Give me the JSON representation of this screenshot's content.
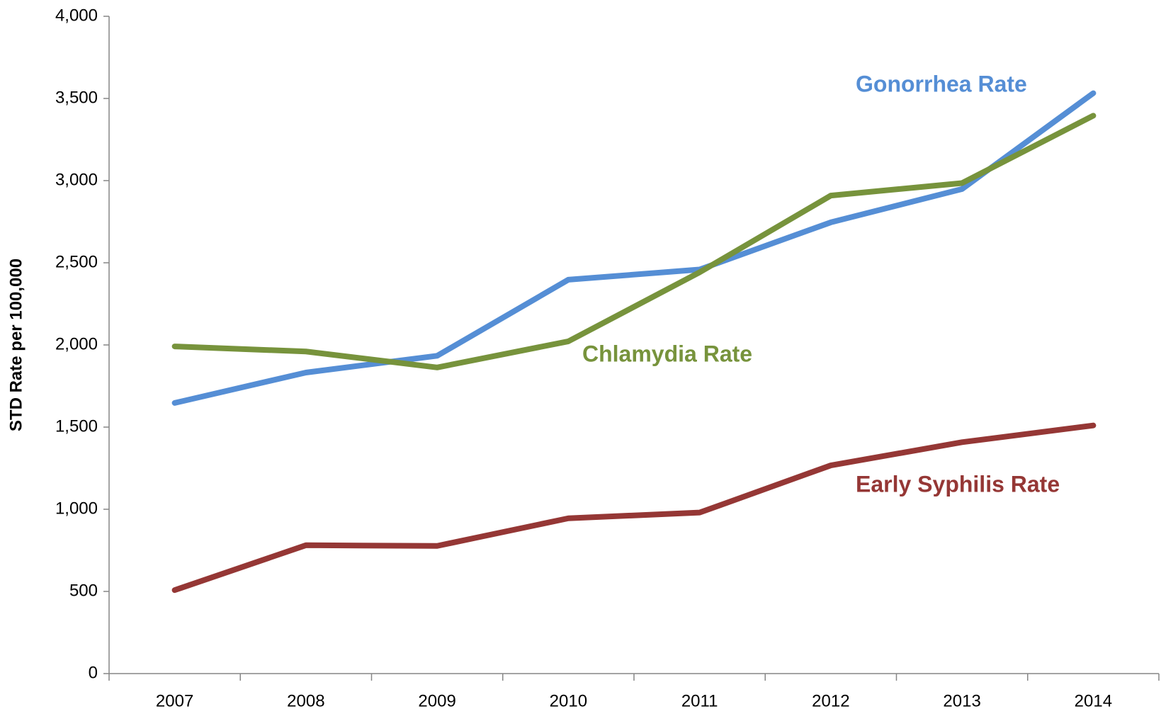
{
  "chart_data": {
    "type": "line",
    "y_label": "STD Rate per 100,000",
    "categories": [
      "2007",
      "2008",
      "2009",
      "2010",
      "2011",
      "2012",
      "2013",
      "2014"
    ],
    "series": [
      {
        "name": "Gonorrhea Rate",
        "color": "#558ed5",
        "values": [
          1647,
          1832,
          1934,
          2397,
          2459,
          2746,
          2949,
          3532
        ]
      },
      {
        "name": "Chlamydia Rate",
        "color": "#77933c",
        "values": [
          1991,
          1960,
          1863,
          2022,
          2442,
          2909,
          2985,
          3395
        ]
      },
      {
        "name": "Early Syphilis Rate",
        "color": "#953735",
        "values": [
          508,
          781,
          777,
          945,
          980,
          1267,
          1408,
          1510
        ]
      }
    ],
    "ylim": [
      0,
      4000
    ],
    "yticks": [
      0,
      500,
      {
        "value": 1000,
        "label": "1,000"
      },
      {
        "value": 1500,
        "label": "1,500"
      },
      {
        "value": 2000,
        "label": "2,000"
      },
      {
        "value": 2500,
        "label": "2,500"
      },
      {
        "value": 3000,
        "label": "3,000"
      },
      {
        "value": 3500,
        "label": "3,500"
      },
      {
        "value": 4000,
        "label": "4,000"
      }
    ],
    "grid": false
  }
}
